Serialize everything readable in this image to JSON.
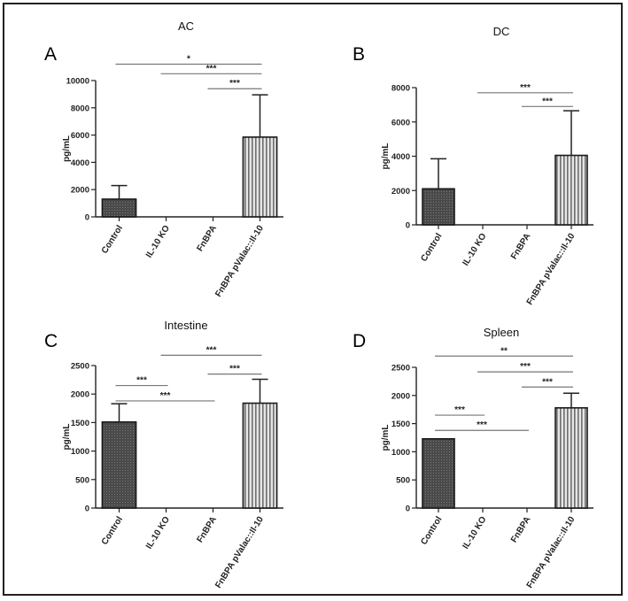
{
  "chart_data": [
    {
      "type": "bar",
      "panel_letter": "A",
      "title": "AC",
      "ylabel": "pg/mL",
      "ylim": [
        0,
        10000
      ],
      "yticks": [
        0,
        2000,
        4000,
        6000,
        8000,
        10000
      ],
      "categories": [
        "Control",
        "IL-10 KO",
        "FnBPA",
        "FnBPA pValac::Il-10"
      ],
      "values": [
        1300,
        0,
        0,
        5850
      ],
      "errors": [
        1000,
        0,
        0,
        3100
      ],
      "significance": [
        {
          "from": 0,
          "to": 3,
          "label": "*",
          "y": 11200
        },
        {
          "from": 1,
          "to": 3,
          "label": "***",
          "y": 10500
        },
        {
          "from": 2,
          "to": 3,
          "label": "***",
          "y": 9400
        }
      ]
    },
    {
      "type": "bar",
      "panel_letter": "B",
      "title": "DC",
      "ylabel": "pg/mL",
      "ylim": [
        0,
        8000
      ],
      "yticks": [
        0,
        2000,
        4000,
        6000,
        8000
      ],
      "categories": [
        "Control",
        "IL-10 KO",
        "FnBPA",
        "FnBPA pValac::Il-10"
      ],
      "values": [
        2100,
        0,
        0,
        4050
      ],
      "errors": [
        1750,
        0,
        0,
        2600
      ],
      "significance": [
        {
          "from": 1,
          "to": 3,
          "label": "***",
          "y": 7700
        },
        {
          "from": 2,
          "to": 3,
          "label": "***",
          "y": 6900
        }
      ]
    },
    {
      "type": "bar",
      "panel_letter": "C",
      "title": "Intestine",
      "ylabel": "pg/mL",
      "ylim": [
        0,
        2500
      ],
      "yticks": [
        0,
        500,
        1000,
        1500,
        2000,
        2500
      ],
      "categories": [
        "Control",
        "IL-10 KO",
        "FnBPA",
        "FnBPA pValac::Il-10"
      ],
      "values": [
        1510,
        0,
        0,
        1840
      ],
      "errors": [
        320,
        0,
        0,
        420
      ],
      "significance": [
        {
          "from": 1,
          "to": 3,
          "label": "***",
          "y": 2680
        },
        {
          "from": 0,
          "to": 1,
          "label": "***",
          "y": 2150
        },
        {
          "from": 2,
          "to": 3,
          "label": "***",
          "y": 2350
        },
        {
          "from": 0,
          "to": 2,
          "label": "***",
          "y": 1880
        }
      ]
    },
    {
      "type": "bar",
      "panel_letter": "D",
      "title": "Spleen",
      "ylabel": "pg/mL",
      "ylim": [
        0,
        2500
      ],
      "yticks": [
        0,
        500,
        1000,
        1500,
        2000,
        2500
      ],
      "categories": [
        "Control",
        "IL-10 KO",
        "FnBPA",
        "FnBPA pValac::Il-10"
      ],
      "values": [
        1230,
        0,
        0,
        1780
      ],
      "errors": [
        0,
        0,
        0,
        260
      ],
      "significance": [
        {
          "from": 0,
          "to": 3,
          "label": "**",
          "y": 2700
        },
        {
          "from": 1,
          "to": 3,
          "label": "***",
          "y": 2420
        },
        {
          "from": 2,
          "to": 3,
          "label": "***",
          "y": 2150
        },
        {
          "from": 0,
          "to": 1,
          "label": "***",
          "y": 1650
        },
        {
          "from": 0,
          "to": 2,
          "label": "***",
          "y": 1380
        }
      ]
    }
  ]
}
